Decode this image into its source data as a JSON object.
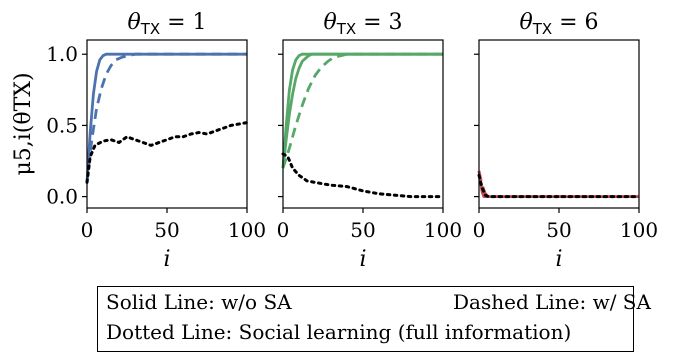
{
  "chart_data": [
    {
      "type": "line",
      "title": "θTX = 1",
      "ylabel": "μ5,i(θTX)",
      "xlabel": "i",
      "xlim": [
        0,
        100
      ],
      "ylim": [
        -0.08,
        1.1
      ],
      "x_ticks": [
        "0",
        "50",
        "100"
      ],
      "y_ticks": [
        "0.0",
        "0.5",
        "1.0"
      ],
      "color": "#4c72b0",
      "series": [
        {
          "style": "solid",
          "color": "#4c72b0",
          "x": [
            0,
            2,
            4,
            6,
            8,
            10,
            12,
            14,
            100
          ],
          "y": [
            0.1,
            0.45,
            0.72,
            0.88,
            0.96,
            0.99,
            1.0,
            1.0,
            1.0
          ]
        },
        {
          "style": "dashed",
          "color": "#4c72b0",
          "x": [
            0,
            3,
            6,
            9,
            12,
            15,
            18,
            22,
            26,
            30,
            100
          ],
          "y": [
            0.1,
            0.4,
            0.62,
            0.76,
            0.86,
            0.92,
            0.96,
            0.98,
            0.99,
            1.0,
            1.0
          ]
        },
        {
          "style": "dotted",
          "color": "#000000",
          "x": [
            0,
            2,
            5,
            10,
            15,
            20,
            25,
            30,
            35,
            40,
            45,
            50,
            55,
            60,
            65,
            70,
            75,
            80,
            85,
            90,
            95,
            100
          ],
          "y": [
            0.1,
            0.28,
            0.36,
            0.39,
            0.4,
            0.38,
            0.42,
            0.4,
            0.38,
            0.36,
            0.38,
            0.4,
            0.42,
            0.42,
            0.44,
            0.45,
            0.44,
            0.46,
            0.48,
            0.5,
            0.51,
            0.52
          ]
        }
      ]
    },
    {
      "type": "line",
      "title": "θTX = 3",
      "xlabel": "i",
      "xlim": [
        0,
        100
      ],
      "ylim": [
        -0.08,
        1.1
      ],
      "x_ticks": [
        "0",
        "50",
        "100"
      ],
      "y_ticks": [
        "",
        "",
        ""
      ],
      "color": "#55a868",
      "series": [
        {
          "style": "solid",
          "color": "#55a868",
          "x": [
            0,
            2,
            4,
            6,
            8,
            10,
            12,
            14,
            16,
            100
          ],
          "y": [
            0.2,
            0.5,
            0.75,
            0.89,
            0.96,
            0.99,
            1.0,
            1.0,
            1.0,
            1.0
          ]
        },
        {
          "style": "solid",
          "color": "#55a868",
          "x": [
            0,
            2,
            4,
            6,
            8,
            10,
            12,
            14,
            16,
            18,
            20,
            100
          ],
          "y": [
            0.2,
            0.4,
            0.58,
            0.72,
            0.83,
            0.9,
            0.95,
            0.97,
            0.99,
            1.0,
            1.0,
            1.0
          ]
        },
        {
          "style": "dashed",
          "color": "#55a868",
          "x": [
            0,
            4,
            8,
            12,
            16,
            20,
            24,
            28,
            32,
            36,
            40,
            100
          ],
          "y": [
            0.2,
            0.34,
            0.5,
            0.64,
            0.76,
            0.85,
            0.91,
            0.95,
            0.98,
            0.99,
            1.0,
            1.0
          ]
        },
        {
          "style": "dotted",
          "color": "#000000",
          "x": [
            0,
            3,
            6,
            10,
            15,
            20,
            25,
            30,
            40,
            50,
            60,
            70,
            80,
            90,
            100
          ],
          "y": [
            0.3,
            0.28,
            0.2,
            0.15,
            0.11,
            0.1,
            0.09,
            0.08,
            0.07,
            0.04,
            0.02,
            0.01,
            0.0,
            0.0,
            0.0
          ]
        }
      ]
    },
    {
      "type": "line",
      "title": "θTX = 6",
      "xlabel": "i",
      "xlim": [
        0,
        100
      ],
      "ylim": [
        -0.08,
        1.1
      ],
      "x_ticks": [
        "0",
        "50",
        "100"
      ],
      "y_ticks": [
        "",
        "",
        ""
      ],
      "color": "#c44e52",
      "series": [
        {
          "style": "solid",
          "color": "#c44e52",
          "x": [
            0,
            1,
            2,
            3,
            4,
            100
          ],
          "y": [
            0.18,
            0.1,
            0.03,
            0.0,
            0.0,
            0.0
          ]
        },
        {
          "style": "dashed",
          "color": "#c44e52",
          "x": [
            0,
            2,
            4,
            6,
            100
          ],
          "y": [
            0.18,
            0.08,
            0.02,
            0.0,
            0.0
          ]
        },
        {
          "style": "dotted",
          "color": "#000000",
          "x": [
            0,
            2,
            4,
            6,
            100
          ],
          "y": [
            0.15,
            0.06,
            0.01,
            0.0,
            0.0
          ]
        }
      ]
    }
  ],
  "legend": {
    "row1_a": "Solid Line: w/o SA",
    "row1_b": "Dashed Line: w/ SA",
    "row2": "Dotted Line: Social learning (full information)"
  }
}
